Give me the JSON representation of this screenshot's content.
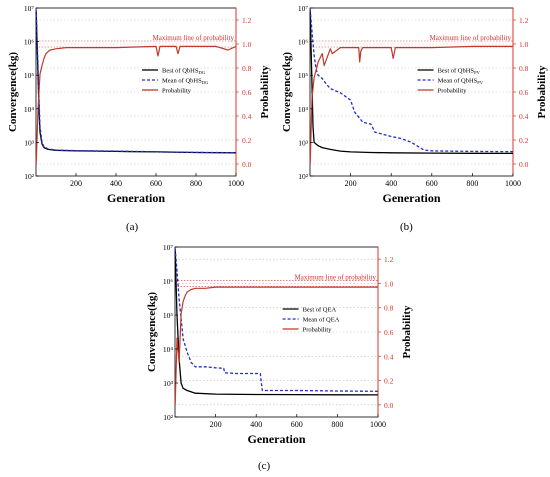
{
  "panel_labels": [
    "(a)",
    "(b)",
    "(c)"
  ],
  "colors": {
    "best": "#000000",
    "mean": "#1f2fc8",
    "probability": "#c0392b",
    "axis_right": "#d9342b",
    "maxline": "#d9342b",
    "grid": "#bfbfbf"
  },
  "chart_data": [
    {
      "type": "line",
      "panel": "(a)",
      "xlabel": "Generation",
      "ylabel": "Convergence(kg)",
      "y2label": "Probability",
      "xlim": [
        0,
        1000
      ],
      "ylim": [
        100,
        10000000
      ],
      "y_scale": "log",
      "y2lim": [
        -0.1,
        1.3
      ],
      "x_ticks": [
        "200",
        "400",
        "600",
        "800",
        "1000"
      ],
      "y_ticks": [
        "10²",
        "10³",
        "10⁴",
        "10⁵",
        "10⁶",
        "10⁷"
      ],
      "y2_ticks": [
        "0.0",
        "0.2",
        "0.4",
        "0.6",
        "0.8",
        "1.0",
        "1.2"
      ],
      "max_line": {
        "value": 1.0,
        "label": "Maximum line of probability"
      },
      "legend": {
        "position": "center-right",
        "entries": [
          {
            "base": "Best of QbHS",
            "sub": "DG"
          },
          {
            "base": "Mean of QbHS",
            "sub": "DG"
          },
          {
            "base": "Probability",
            "sub": ""
          }
        ]
      },
      "series": [
        {
          "name": "Best of QbHS_DG",
          "axis": "left",
          "style": "solid-black",
          "x": [
            1,
            5,
            10,
            15,
            20,
            30,
            40,
            60,
            100,
            200,
            400,
            600,
            800,
            1000
          ],
          "y": [
            8000000,
            1000000,
            100000,
            10000,
            2000,
            900,
            700,
            620,
            580,
            560,
            540,
            520,
            500,
            490
          ]
        },
        {
          "name": "Mean of QbHS_DG",
          "axis": "left",
          "style": "dashed-blue",
          "x": [
            1,
            5,
            10,
            15,
            20,
            30,
            40,
            60,
            100,
            200,
            400,
            600,
            800,
            1000
          ],
          "y": [
            9000000,
            1500000,
            200000,
            20000,
            3000,
            1000,
            750,
            640,
            590,
            570,
            550,
            525,
            505,
            495
          ]
        },
        {
          "name": "Probability",
          "axis": "right",
          "style": "solid-red",
          "x": [
            1,
            10,
            20,
            30,
            40,
            50,
            70,
            100,
            150,
            200,
            400,
            600,
            610,
            620,
            700,
            710,
            720,
            800,
            900,
            960,
            1000
          ],
          "y": [
            0.0,
            0.45,
            0.75,
            0.82,
            0.88,
            0.92,
            0.95,
            0.96,
            0.97,
            0.97,
            0.97,
            0.98,
            0.9,
            0.98,
            0.98,
            0.92,
            0.98,
            0.98,
            0.98,
            0.95,
            0.98
          ]
        }
      ]
    },
    {
      "type": "line",
      "panel": "(b)",
      "xlabel": "Generation",
      "ylabel": "Convergence(kg)",
      "y2label": "Probability",
      "xlim": [
        0,
        1000
      ],
      "ylim": [
        100,
        10000000
      ],
      "y_scale": "log",
      "y2lim": [
        -0.1,
        1.3
      ],
      "x_ticks": [
        "200",
        "400",
        "600",
        "800",
        "1000"
      ],
      "y_ticks": [
        "10²",
        "10³",
        "10⁴",
        "10⁵",
        "10⁶",
        "10⁷"
      ],
      "y2_ticks": [
        "0.0",
        "0.2",
        "0.4",
        "0.6",
        "0.8",
        "1.0",
        "1.2"
      ],
      "max_line": {
        "value": 1.0,
        "label": "Maximum line of probability"
      },
      "legend": {
        "position": "center-right",
        "entries": [
          {
            "base": "Best of QbHS",
            "sub": "PV"
          },
          {
            "base": "Mean of QbHS",
            "sub": "PV"
          },
          {
            "base": "Probability",
            "sub": ""
          }
        ]
      },
      "series": [
        {
          "name": "Best of QbHS_PV",
          "axis": "left",
          "style": "solid-black",
          "x": [
            1,
            5,
            10,
            15,
            20,
            40,
            60,
            100,
            150,
            200,
            300,
            400,
            600,
            800,
            1000
          ],
          "y": [
            9000000,
            800000,
            50000,
            3000,
            1000,
            800,
            700,
            620,
            550,
            520,
            500,
            490,
            480,
            475,
            470
          ]
        },
        {
          "name": "Mean of QbHS_PV",
          "axis": "left",
          "style": "dashed-blue",
          "x": [
            1,
            10,
            20,
            30,
            40,
            60,
            80,
            100,
            150,
            200,
            220,
            260,
            300,
            320,
            350,
            400,
            450,
            500,
            560,
            600,
            800,
            1000
          ],
          "y": [
            9000000,
            2000000,
            400000,
            150000,
            100000,
            80000,
            55000,
            40000,
            30000,
            18000,
            8000,
            4000,
            3500,
            2000,
            1800,
            1500,
            1300,
            1000,
            600,
            560,
            540,
            530
          ]
        },
        {
          "name": "Probability",
          "axis": "right",
          "style": "solid-red",
          "x": [
            1,
            10,
            20,
            30,
            40,
            60,
            70,
            100,
            110,
            150,
            200,
            240,
            245,
            250,
            260,
            300,
            400,
            410,
            420,
            600,
            800,
            1000
          ],
          "y": [
            0.0,
            0.55,
            0.72,
            0.78,
            0.85,
            0.92,
            0.82,
            0.96,
            0.92,
            0.97,
            0.97,
            0.97,
            0.85,
            0.94,
            0.97,
            0.97,
            0.97,
            0.88,
            0.97,
            0.97,
            0.98,
            0.98
          ]
        }
      ]
    },
    {
      "type": "line",
      "panel": "(c)",
      "xlabel": "Generation",
      "ylabel": "Convergence(kg)",
      "y2label": "Probability",
      "xlim": [
        0,
        1000
      ],
      "ylim": [
        100,
        10000000
      ],
      "y_scale": "log",
      "y2lim": [
        -0.1,
        1.3
      ],
      "x_ticks": [
        "200",
        "400",
        "600",
        "800",
        "1000"
      ],
      "y_ticks": [
        "10²",
        "10³",
        "10⁴",
        "10⁵",
        "10⁶",
        "10⁷"
      ],
      "y2_ticks": [
        "0.0",
        "0.2",
        "0.4",
        "0.6",
        "0.8",
        "1.0",
        "1.2"
      ],
      "max_line": {
        "value": 1.0,
        "label": "Maximum line of probability"
      },
      "legend": {
        "position": "center-right",
        "entries": [
          {
            "base": "Best of QEA",
            "sub": ""
          },
          {
            "base": "Mean of QEA",
            "sub": ""
          },
          {
            "base": "Probability",
            "sub": ""
          }
        ]
      },
      "series": [
        {
          "name": "Best of QEA",
          "axis": "left",
          "style": "solid-black",
          "x": [
            1,
            5,
            10,
            20,
            30,
            40,
            60,
            100,
            200,
            400,
            600,
            800,
            1000
          ],
          "y": [
            9000000,
            1000000,
            100000,
            5000,
            1000,
            700,
            600,
            500,
            470,
            460,
            455,
            450,
            448
          ]
        },
        {
          "name": "Mean of QEA",
          "axis": "left",
          "style": "dashed-blue",
          "x": [
            1,
            10,
            20,
            30,
            40,
            60,
            80,
            100,
            150,
            200,
            240,
            245,
            300,
            420,
            430,
            600,
            800,
            1000
          ],
          "y": [
            9000000,
            2000000,
            300000,
            80000,
            20000,
            8000,
            4000,
            3000,
            3000,
            2800,
            2700,
            2000,
            1900,
            1900,
            600,
            600,
            580,
            570
          ]
        },
        {
          "name": "Probability",
          "axis": "right",
          "style": "solid-red",
          "x": [
            1,
            10,
            20,
            30,
            40,
            50,
            60,
            80,
            100,
            150,
            200,
            300,
            400,
            500,
            600,
            700,
            800,
            900,
            1000
          ],
          "y": [
            0.0,
            0.55,
            0.35,
            0.75,
            0.85,
            0.9,
            0.93,
            0.95,
            0.96,
            0.96,
            0.97,
            0.97,
            0.97,
            0.97,
            0.97,
            0.97,
            0.97,
            0.97,
            0.97
          ]
        }
      ]
    }
  ]
}
